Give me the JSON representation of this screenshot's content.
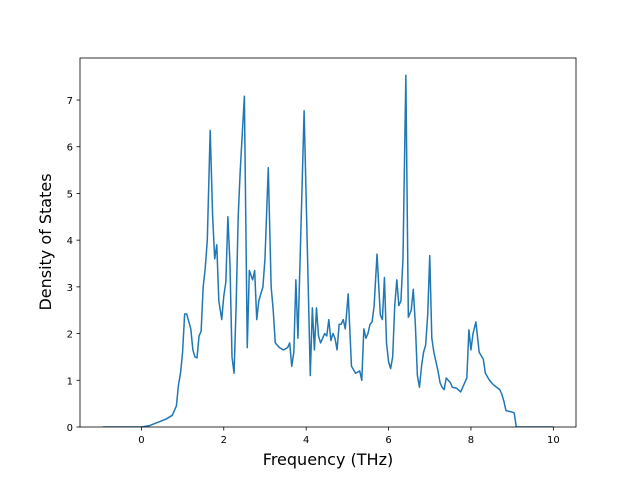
{
  "chart_data": {
    "type": "line",
    "xlabel": "Frequency (THz)",
    "ylabel": "Density of States",
    "color": "#1f77b4",
    "xlim": [
      -1.49,
      10.55
    ],
    "ylim": [
      0,
      7.9
    ],
    "xticks": [
      0,
      2,
      4,
      6,
      8,
      10
    ],
    "yticks": [
      0,
      1,
      2,
      3,
      4,
      5,
      6,
      7
    ],
    "x": [
      -0.94,
      0,
      0.2,
      0.4,
      0.6,
      0.75,
      0.85,
      0.9,
      0.95,
      1.0,
      1.05,
      1.1,
      1.2,
      1.25,
      1.3,
      1.35,
      1.4,
      1.45,
      1.5,
      1.55,
      1.6,
      1.67,
      1.73,
      1.78,
      1.83,
      1.88,
      1.95,
      2.0,
      2.05,
      2.1,
      2.15,
      2.2,
      2.25,
      2.3,
      2.35,
      2.4,
      2.5,
      2.57,
      2.62,
      2.7,
      2.75,
      2.8,
      2.85,
      2.95,
      3.0,
      3.08,
      3.15,
      3.2,
      3.25,
      3.35,
      3.45,
      3.55,
      3.6,
      3.65,
      3.7,
      3.75,
      3.8,
      3.85,
      3.95,
      4.05,
      4.1,
      4.15,
      4.2,
      4.25,
      4.3,
      4.35,
      4.45,
      4.5,
      4.55,
      4.6,
      4.65,
      4.7,
      4.75,
      4.8,
      4.85,
      4.9,
      4.95,
      5.02,
      5.1,
      5.2,
      5.3,
      5.35,
      5.4,
      5.45,
      5.5,
      5.55,
      5.6,
      5.65,
      5.72,
      5.8,
      5.85,
      5.9,
      5.95,
      6.0,
      6.05,
      6.1,
      6.15,
      6.2,
      6.25,
      6.3,
      6.35,
      6.42,
      6.48,
      6.55,
      6.6,
      6.65,
      6.7,
      6.75,
      6.8,
      6.85,
      6.9,
      6.95,
      7.0,
      7.05,
      7.1,
      7.2,
      7.25,
      7.3,
      7.35,
      7.4,
      7.5,
      7.55,
      7.65,
      7.75,
      7.85,
      7.9,
      7.95,
      8.0,
      8.05,
      8.12,
      8.2,
      8.3,
      8.35,
      8.45,
      8.55,
      8.7,
      8.75,
      8.8,
      8.85,
      8.95,
      9.0,
      9.05,
      9.1,
      10
    ],
    "values": [
      0,
      0,
      0.03,
      0.1,
      0.17,
      0.25,
      0.45,
      0.9,
      1.15,
      1.6,
      2.42,
      2.42,
      2.1,
      1.65,
      1.5,
      1.48,
      1.95,
      2.05,
      3.0,
      3.4,
      4.0,
      6.35,
      4.5,
      3.6,
      3.9,
      2.7,
      2.3,
      2.8,
      3.1,
      4.5,
      3.5,
      1.5,
      1.15,
      2.6,
      4.5,
      5.5,
      7.08,
      1.7,
      3.35,
      3.15,
      3.35,
      2.3,
      2.7,
      3.0,
      3.6,
      5.55,
      3.0,
      2.5,
      1.8,
      1.7,
      1.65,
      1.7,
      1.8,
      1.3,
      1.6,
      3.15,
      1.9,
      3.5,
      6.77,
      3.0,
      1.1,
      2.55,
      1.65,
      2.55,
      1.95,
      1.8,
      2.0,
      1.95,
      2.3,
      1.85,
      2.0,
      1.9,
      1.65,
      2.2,
      2.2,
      2.3,
      2.1,
      2.85,
      1.3,
      1.15,
      1.2,
      1.0,
      2.1,
      1.9,
      2.0,
      2.2,
      2.25,
      2.6,
      3.7,
      2.4,
      2.3,
      3.2,
      1.8,
      1.4,
      1.25,
      1.5,
      2.6,
      3.15,
      2.6,
      2.7,
      3.6,
      7.53,
      2.35,
      2.5,
      2.95,
      2.2,
      1.1,
      0.85,
      1.3,
      1.6,
      1.75,
      2.4,
      3.67,
      1.9,
      1.6,
      1.2,
      0.95,
      0.85,
      0.8,
      1.05,
      0.95,
      0.85,
      0.83,
      0.75,
      0.95,
      1.05,
      2.08,
      1.65,
      2.0,
      2.25,
      1.6,
      1.45,
      1.15,
      1.0,
      0.9,
      0.8,
      0.7,
      0.55,
      0.35,
      0.33,
      0.32,
      0.3,
      0,
      0
    ]
  }
}
